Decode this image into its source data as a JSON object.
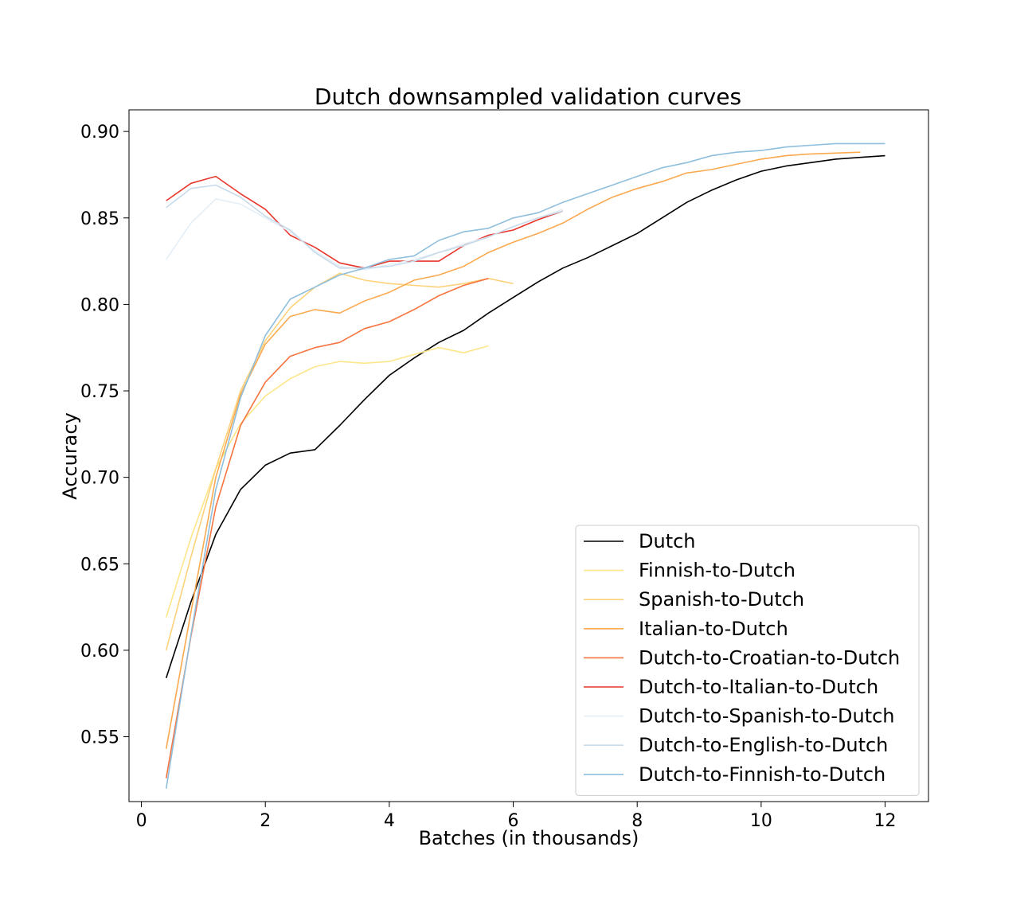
{
  "chart_data": {
    "type": "line",
    "title": "Dutch downsampled validation curves",
    "xlabel": "Batches (in thousands)",
    "ylabel": "Accuracy",
    "xlim": [
      -0.2,
      12.7
    ],
    "ylim": [
      0.5125,
      0.9125
    ],
    "xticks": [
      0,
      2,
      4,
      6,
      8,
      10,
      12
    ],
    "xtick_labels": [
      "0",
      "2",
      "4",
      "6",
      "8",
      "10",
      "12"
    ],
    "yticks": [
      0.55,
      0.6,
      0.65,
      0.7,
      0.75,
      0.8,
      0.85,
      0.9
    ],
    "ytick_labels": [
      "0.55",
      "0.60",
      "0.65",
      "0.70",
      "0.75",
      "0.80",
      "0.85",
      "0.90"
    ],
    "grid": false,
    "legend_position": "lower-right",
    "series": [
      {
        "name": "Dutch",
        "color": "#000000",
        "x": [
          0.4,
          0.8,
          1.2,
          1.6,
          2.0,
          2.4,
          2.8,
          3.2,
          3.6,
          4.0,
          4.4,
          4.8,
          5.2,
          5.6,
          6.0,
          6.4,
          6.8,
          7.2,
          7.6,
          8.0,
          8.4,
          8.8,
          9.2,
          9.6,
          10.0,
          10.4,
          10.8,
          11.2,
          11.6,
          12.0
        ],
        "y": [
          0.584,
          0.628,
          0.667,
          0.693,
          0.707,
          0.714,
          0.716,
          0.73,
          0.745,
          0.759,
          0.769,
          0.778,
          0.785,
          0.795,
          0.804,
          0.813,
          0.821,
          0.827,
          0.834,
          0.841,
          0.85,
          0.859,
          0.866,
          0.872,
          0.877,
          0.88,
          0.882,
          0.884,
          0.885,
          0.886
        ]
      },
      {
        "name": "Finnish-to-Dutch",
        "color": "#fde68a",
        "x": [
          0.4,
          0.8,
          1.2,
          1.6,
          2.0,
          2.4,
          2.8,
          3.2,
          3.6,
          4.0,
          4.4,
          4.8,
          5.2,
          5.6
        ],
        "y": [
          0.619,
          0.665,
          0.705,
          0.731,
          0.747,
          0.757,
          0.764,
          0.767,
          0.766,
          0.767,
          0.771,
          0.775,
          0.772,
          0.776
        ]
      },
      {
        "name": "Spanish-to-Dutch",
        "color": "#fdd27a",
        "x": [
          0.4,
          0.8,
          1.2,
          1.6,
          2.0,
          2.4,
          2.8,
          3.2,
          3.6,
          4.0,
          4.4,
          4.8,
          5.2,
          5.6,
          6.0
        ],
        "y": [
          0.6,
          0.654,
          0.705,
          0.75,
          0.779,
          0.798,
          0.81,
          0.818,
          0.814,
          0.812,
          0.811,
          0.81,
          0.812,
          0.815,
          0.812
        ]
      },
      {
        "name": "Italian-to-Dutch",
        "color": "#fba94f",
        "x": [
          0.4,
          0.8,
          1.2,
          1.6,
          2.0,
          2.4,
          2.8,
          3.2,
          3.6,
          4.0,
          4.4,
          4.8,
          5.2,
          5.6,
          6.0,
          6.4,
          6.8,
          7.2,
          7.6,
          8.0,
          8.4,
          8.8,
          9.2,
          9.6,
          10.0,
          10.4,
          10.8,
          11.2,
          11.6
        ],
        "y": [
          0.543,
          0.622,
          0.7,
          0.748,
          0.777,
          0.793,
          0.797,
          0.795,
          0.802,
          0.807,
          0.814,
          0.817,
          0.822,
          0.83,
          0.836,
          0.841,
          0.847,
          0.855,
          0.862,
          0.867,
          0.871,
          0.876,
          0.878,
          0.881,
          0.884,
          0.886,
          0.887,
          0.8875,
          0.888
        ]
      },
      {
        "name": "Dutch-to-Croatian-to-Dutch",
        "color": "#f6743f",
        "x": [
          0.4,
          0.8,
          1.2,
          1.6,
          2.0,
          2.4,
          2.8,
          3.2,
          3.6,
          4.0,
          4.4,
          4.8,
          5.2,
          5.6
        ],
        "y": [
          0.526,
          0.608,
          0.683,
          0.73,
          0.755,
          0.77,
          0.775,
          0.778,
          0.786,
          0.79,
          0.797,
          0.805,
          0.811,
          0.815
        ]
      },
      {
        "name": "Dutch-to-Italian-to-Dutch",
        "color": "#e8352a",
        "x": [
          0.4,
          0.8,
          1.2,
          1.6,
          2.0,
          2.4,
          2.8,
          3.2,
          3.6,
          4.0,
          4.4,
          4.8,
          5.2,
          5.6,
          6.0,
          6.4,
          6.8
        ],
        "y": [
          0.86,
          0.87,
          0.874,
          0.864,
          0.855,
          0.84,
          0.833,
          0.824,
          0.821,
          0.825,
          0.825,
          0.825,
          0.834,
          0.84,
          0.843,
          0.849,
          0.854
        ]
      },
      {
        "name": "Dutch-to-Spanish-to-Dutch",
        "color": "#e4eef6",
        "x": [
          0.4,
          0.8,
          1.2,
          1.6,
          2.0,
          2.4,
          2.8,
          3.2,
          3.6,
          4.0,
          4.4,
          4.8,
          5.2,
          5.6,
          6.0,
          6.4,
          6.8
        ],
        "y": [
          0.826,
          0.847,
          0.861,
          0.858,
          0.85,
          0.842,
          0.831,
          0.822,
          0.82,
          0.823,
          0.826,
          0.83,
          0.835,
          0.839,
          0.845,
          0.85,
          0.855
        ]
      },
      {
        "name": "Dutch-to-English-to-Dutch",
        "color": "#c7dbeb",
        "x": [
          0.4,
          0.8,
          1.2,
          1.6,
          2.0,
          2.4,
          2.8,
          3.2,
          3.6,
          4.0,
          4.4,
          4.8,
          5.2,
          5.6,
          6.0,
          6.4,
          6.8
        ],
        "y": [
          0.856,
          0.867,
          0.869,
          0.862,
          0.851,
          0.843,
          0.83,
          0.821,
          0.821,
          0.822,
          0.825,
          0.83,
          0.834,
          0.839,
          0.845,
          0.85,
          0.854
        ]
      },
      {
        "name": "Dutch-to-Finnish-to-Dutch",
        "color": "#8fbfdc",
        "x": [
          0.4,
          0.8,
          1.2,
          1.6,
          2.0,
          2.4,
          2.8,
          3.2,
          3.6,
          4.0,
          4.4,
          4.8,
          5.2,
          5.6,
          6.0,
          6.4,
          6.8,
          7.2,
          7.6,
          8.0,
          8.4,
          8.8,
          9.2,
          9.6,
          10.0,
          10.4,
          10.8,
          11.2,
          11.6,
          12.0
        ],
        "y": [
          0.52,
          0.609,
          0.693,
          0.746,
          0.782,
          0.803,
          0.81,
          0.817,
          0.821,
          0.826,
          0.828,
          0.837,
          0.842,
          0.844,
          0.85,
          0.853,
          0.859,
          0.864,
          0.869,
          0.874,
          0.879,
          0.882,
          0.886,
          0.888,
          0.889,
          0.891,
          0.892,
          0.893,
          0.893,
          0.893
        ]
      }
    ]
  }
}
